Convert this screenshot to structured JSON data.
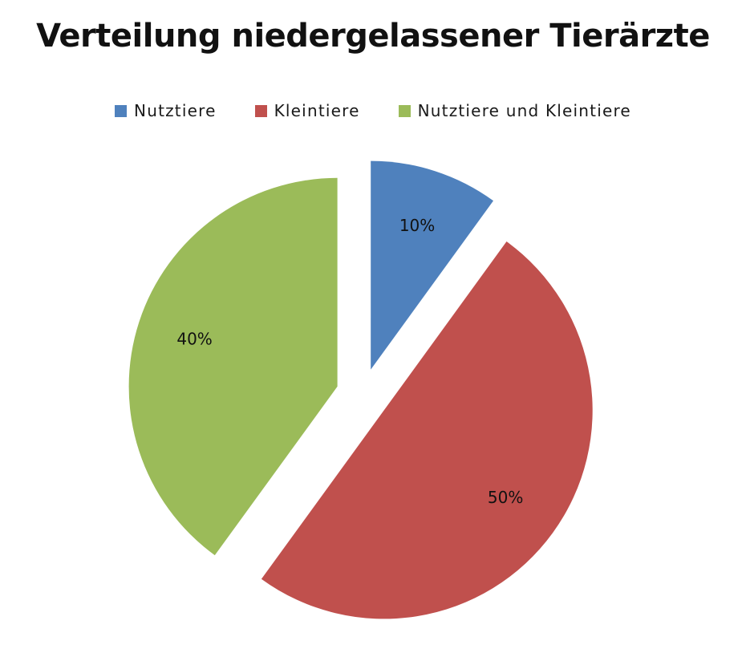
{
  "chart_data": {
    "type": "pie",
    "title": "Verteilung niedergelassener Tierärzte",
    "legend_position": "top",
    "slices": [
      {
        "name": "Nutztiere",
        "value": 10,
        "label": "10%",
        "color": "#4F81BD"
      },
      {
        "name": "Kleintiere",
        "value": 50,
        "label": "50%",
        "color": "#C0504D"
      },
      {
        "name": "Nutztiere und Kleintiere",
        "value": 40,
        "label": "40%",
        "color": "#9BBB59"
      }
    ]
  }
}
